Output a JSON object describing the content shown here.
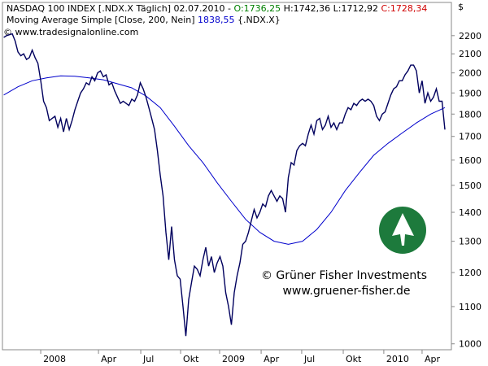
{
  "chart_data": {
    "type": "line",
    "log_scale": true,
    "grid": false,
    "header": {
      "line1": [
        "NASDAQ 100 INDEX [.NDX.X  Täglich] 02.07.2010 - ",
        "O:1736,25",
        " H:1742,36 L:1712,92 ",
        "C:1728,34"
      ],
      "line2": [
        "Moving Average Simple [Close, 200, Nein] ",
        "1838,55",
        " {.NDX.X}"
      ],
      "copyright": "© www.tradesignalonline.com",
      "currency": "$"
    },
    "watermark": [
      "© Grüner Fisher Investments",
      "www.gruener-fisher.de"
    ],
    "xlim": [
      -2.69,
      28.86
    ],
    "ylim": [
      985,
      2395
    ],
    "xticks": [
      {
        "value": 0,
        "label": "2008"
      },
      {
        "value": 4.06,
        "label": "Apr"
      },
      {
        "value": 7.03,
        "label": "Jul"
      },
      {
        "value": 9.83,
        "label": "Okt"
      },
      {
        "value": 12.57,
        "label": "2009"
      },
      {
        "value": 15.49,
        "label": "Apr"
      },
      {
        "value": 18.34,
        "label": "Jul"
      },
      {
        "value": 21.26,
        "label": "Okt"
      },
      {
        "value": 24.11,
        "label": "2010"
      },
      {
        "value": 26.8,
        "label": "Apr"
      }
    ],
    "yticks": [
      1000,
      1100,
      1200,
      1300,
      1400,
      1500,
      1600,
      1700,
      1800,
      1900,
      2000,
      2100,
      2200
    ],
    "series": [
      {
        "name": "NASDAQ 100 INDEX",
        "color": "#00005e",
        "x": [
          -2.6,
          -2.4,
          -2.2,
          -2,
          -1.8,
          -1.6,
          -1.4,
          -1.2,
          -1,
          -0.8,
          -0.6,
          -0.4,
          -0.2,
          0,
          0.2,
          0.4,
          0.6,
          0.8,
          1,
          1.2,
          1.4,
          1.6,
          1.8,
          2,
          2.2,
          2.4,
          2.6,
          2.8,
          3,
          3.2,
          3.4,
          3.6,
          3.8,
          4,
          4.2,
          4.4,
          4.6,
          4.8,
          5,
          5.2,
          5.4,
          5.6,
          5.8,
          6,
          6.2,
          6.4,
          6.6,
          6.8,
          7,
          7.2,
          7.4,
          7.6,
          7.8,
          8,
          8.2,
          8.4,
          8.6,
          8.8,
          9,
          9.2,
          9.4,
          9.6,
          9.8,
          10,
          10.2,
          10.4,
          10.6,
          10.8,
          11,
          11.2,
          11.4,
          11.6,
          11.8,
          12,
          12.2,
          12.4,
          12.6,
          12.8,
          13,
          13.2,
          13.4,
          13.6,
          13.8,
          14,
          14.2,
          14.4,
          14.6,
          14.8,
          15,
          15.2,
          15.4,
          15.6,
          15.8,
          16,
          16.2,
          16.4,
          16.6,
          16.8,
          17,
          17.2,
          17.4,
          17.6,
          17.8,
          18,
          18.2,
          18.4,
          18.6,
          18.8,
          19,
          19.2,
          19.4,
          19.6,
          19.8,
          20,
          20.2,
          20.4,
          20.6,
          20.8,
          21,
          21.2,
          21.4,
          21.6,
          21.8,
          22,
          22.2,
          22.4,
          22.6,
          22.8,
          23,
          23.2,
          23.4,
          23.6,
          23.8,
          24,
          24.2,
          24.4,
          24.6,
          24.8,
          25,
          25.2,
          25.4,
          25.6,
          25.8,
          26,
          26.2,
          26.4,
          26.6,
          26.8,
          27,
          27.2,
          27.4,
          27.6,
          27.8,
          28,
          28.2,
          28.4
        ],
        "values": [
          2190,
          2200,
          2205,
          2210,
          2170,
          2110,
          2090,
          2100,
          2070,
          2080,
          2120,
          2080,
          2050,
          1960,
          1860,
          1830,
          1770,
          1780,
          1790,
          1740,
          1780,
          1720,
          1780,
          1730,
          1770,
          1820,
          1860,
          1900,
          1920,
          1950,
          1940,
          1980,
          1960,
          2000,
          2010,
          1980,
          1990,
          1940,
          1950,
          1910,
          1880,
          1850,
          1860,
          1850,
          1840,
          1870,
          1860,
          1890,
          1950,
          1920,
          1880,
          1830,
          1780,
          1730,
          1640,
          1540,
          1460,
          1330,
          1240,
          1350,
          1240,
          1190,
          1180,
          1100,
          1020,
          1120,
          1170,
          1220,
          1210,
          1190,
          1240,
          1280,
          1220,
          1250,
          1200,
          1230,
          1250,
          1220,
          1140,
          1100,
          1050,
          1140,
          1190,
          1230,
          1290,
          1300,
          1330,
          1370,
          1410,
          1380,
          1400,
          1430,
          1420,
          1460,
          1480,
          1460,
          1440,
          1460,
          1450,
          1400,
          1530,
          1590,
          1580,
          1640,
          1660,
          1670,
          1660,
          1710,
          1750,
          1710,
          1770,
          1780,
          1730,
          1750,
          1790,
          1740,
          1760,
          1730,
          1760,
          1760,
          1800,
          1830,
          1820,
          1850,
          1840,
          1860,
          1870,
          1860,
          1870,
          1860,
          1840,
          1790,
          1770,
          1800,
          1810,
          1850,
          1890,
          1920,
          1930,
          1960,
          1960,
          1990,
          2010,
          2040,
          2040,
          2010,
          1900,
          1960,
          1850,
          1900,
          1860,
          1880,
          1920,
          1860,
          1860,
          1730
        ]
      },
      {
        "name": "Moving Average Simple [Close, 200, Nein]",
        "color": "#0000cc",
        "x": [
          -2.6,
          -1.6,
          -0.6,
          0.4,
          1.4,
          2.4,
          3.4,
          4.4,
          5.4,
          6.4,
          7.4,
          8.4,
          9.4,
          10.4,
          11.4,
          12.4,
          13.4,
          14.4,
          15.4,
          16.4,
          17.4,
          18.4,
          19.4,
          20.4,
          21.4,
          22.4,
          23.4,
          24.4,
          25.4,
          26.4,
          27.4,
          28.4
        ],
        "values": [
          1890,
          1930,
          1960,
          1975,
          1985,
          1983,
          1975,
          1965,
          1945,
          1925,
          1885,
          1830,
          1745,
          1660,
          1590,
          1510,
          1440,
          1375,
          1330,
          1300,
          1290,
          1300,
          1340,
          1400,
          1480,
          1550,
          1620,
          1670,
          1715,
          1760,
          1800,
          1830
        ]
      }
    ]
  }
}
